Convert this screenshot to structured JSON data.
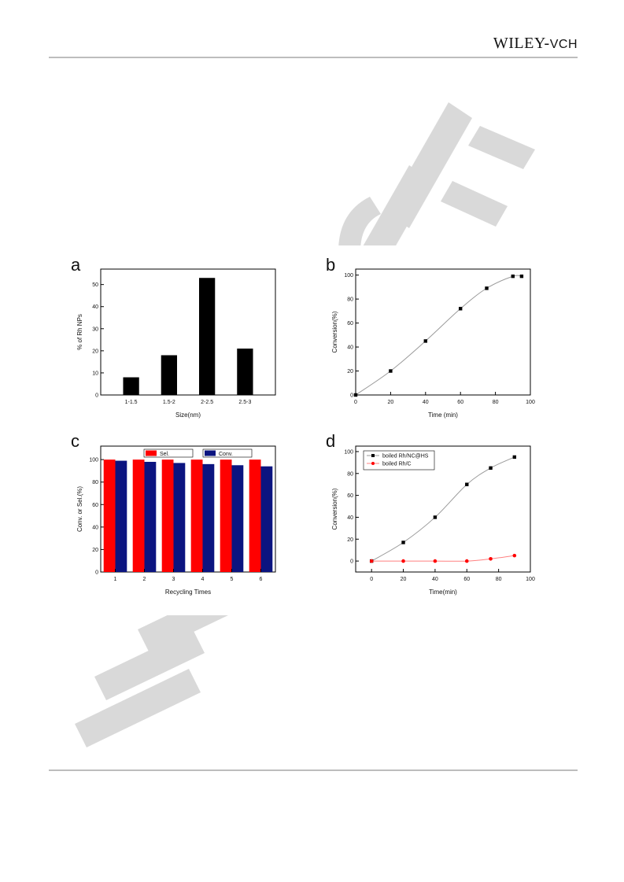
{
  "header": {
    "brand_main": "WILEY",
    "brand_sep": "-",
    "brand_sub": "VCH"
  },
  "colors": {
    "watermark": "#d6d6d6",
    "red": "#ff0000",
    "navy": "#0b1480",
    "black": "#000000",
    "line_gray": "#9a9a9a"
  },
  "chart_data": [
    {
      "panel": "a",
      "type": "bar",
      "xlabel": "Size(nm)",
      "ylabel": "% of Rh NPs",
      "categories": [
        "1-1.5",
        "1.5-2",
        "2-2.5",
        "2.5-3"
      ],
      "values": [
        8,
        18,
        53,
        21
      ],
      "ylim": [
        0,
        57
      ],
      "yticks": [
        0,
        10,
        20,
        30,
        40,
        50
      ],
      "bar_color": "#000000"
    },
    {
      "panel": "b",
      "type": "line",
      "xlabel": "Time (min)",
      "ylabel": "Conversion(%)",
      "xlim": [
        0,
        100
      ],
      "ylim": [
        0,
        105
      ],
      "xticks": [
        0,
        20,
        40,
        60,
        80,
        100
      ],
      "yticks": [
        0,
        20,
        40,
        60,
        80,
        100
      ],
      "series": [
        {
          "x": [
            0,
            20,
            40,
            60,
            75,
            90,
            95
          ],
          "y": [
            0,
            20,
            45,
            72,
            89,
            99,
            99
          ],
          "marker": "square",
          "color": "#000000"
        }
      ]
    },
    {
      "panel": "c",
      "type": "bar",
      "xlabel": "Recycling Times",
      "ylabel": "Conv. or Sel.(%)",
      "categories": [
        "1",
        "2",
        "3",
        "4",
        "5",
        "6"
      ],
      "ylim": [
        0,
        112
      ],
      "yticks": [
        0,
        20,
        40,
        60,
        80,
        100
      ],
      "legend_position": "top",
      "series": [
        {
          "name": "Sel.",
          "color": "#ff0000",
          "values": [
            100,
            100,
            100,
            100,
            100,
            100
          ]
        },
        {
          "name": "Conv.",
          "color": "#0b1480",
          "values": [
            99,
            98,
            97,
            96,
            95,
            94
          ]
        }
      ]
    },
    {
      "panel": "d",
      "type": "line",
      "xlabel": "Time(min)",
      "ylabel": "Conversion(%)",
      "xlim": [
        -10,
        100
      ],
      "ylim": [
        -10,
        105
      ],
      "xticks": [
        0,
        20,
        40,
        60,
        80,
        100
      ],
      "yticks": [
        0,
        20,
        40,
        60,
        80,
        100
      ],
      "legend_position": "top-left",
      "series": [
        {
          "name": "boiled Rh/NC@HS",
          "marker": "square",
          "color": "#000000",
          "x": [
            0,
            20,
            40,
            60,
            75,
            90
          ],
          "y": [
            0,
            17,
            40,
            70,
            85,
            95
          ]
        },
        {
          "name": "boiled Rh/C",
          "marker": "circle",
          "color": "#ff0000",
          "x": [
            0,
            20,
            40,
            60,
            75,
            90
          ],
          "y": [
            0,
            0,
            0,
            0,
            2,
            5
          ]
        }
      ]
    }
  ]
}
